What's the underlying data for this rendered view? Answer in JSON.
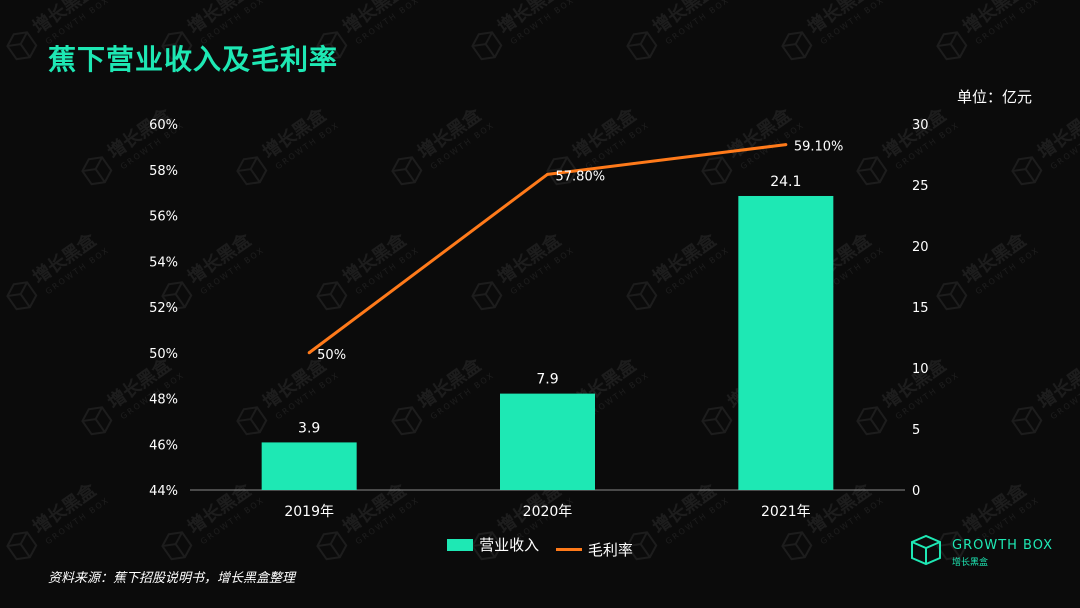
{
  "header": {
    "title": "蕉下营业收入及毛利率",
    "unit": "单位：亿元"
  },
  "footer": {
    "source": "资料来源：蕉下招股说明书，增长黑盒整理",
    "logo_text": "GROWTH BOX",
    "logo_sub": "增长黑盒"
  },
  "watermark": {
    "text": "增长黑盒",
    "sub": "GROWTH BOX"
  },
  "colors": {
    "bar": "#1ee8b4",
    "line": "#ff7a1a",
    "accent": "#1ee8b4",
    "background": "#0b0b0b"
  },
  "chart_data": {
    "type": "bar",
    "categories": [
      "2019年",
      "2020年",
      "2021年"
    ],
    "series": [
      {
        "name": "营业收入",
        "type": "bar",
        "axis": "right",
        "values": [
          3.9,
          7.9,
          24.1
        ],
        "labels": [
          "3.9",
          "7.9",
          "24.1"
        ]
      },
      {
        "name": "毛利率",
        "type": "line",
        "axis": "left",
        "values": [
          50,
          57.8,
          59.1
        ],
        "labels": [
          "50%",
          "57.80%",
          "59.10%"
        ]
      }
    ],
    "y_left": {
      "min": 44,
      "max": 60,
      "ticks": [
        "44%",
        "46%",
        "48%",
        "50%",
        "52%",
        "54%",
        "56%",
        "58%",
        "60%"
      ]
    },
    "y_right": {
      "min": 0,
      "max": 30,
      "ticks": [
        "0",
        "5",
        "10",
        "15",
        "20",
        "25",
        "30"
      ]
    },
    "grid": false,
    "legend": "bottom"
  }
}
